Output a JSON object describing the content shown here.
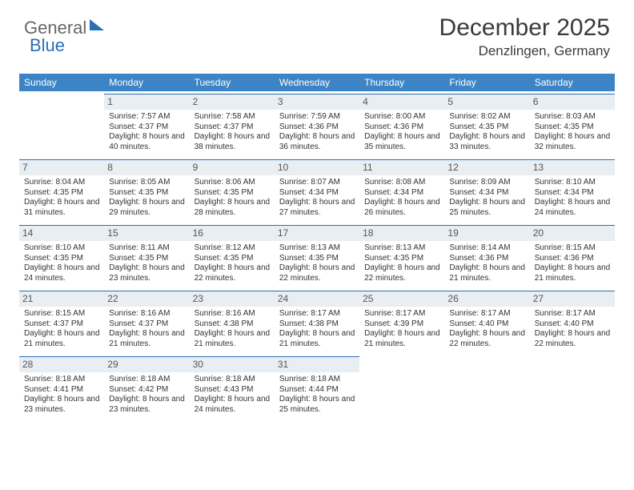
{
  "logo": {
    "part1": "General",
    "part2": "Blue"
  },
  "header": {
    "month_year": "December 2025",
    "location": "Denzlingen, Germany"
  },
  "day_names": [
    "Sunday",
    "Monday",
    "Tuesday",
    "Wednesday",
    "Thursday",
    "Friday",
    "Saturday"
  ],
  "colors": {
    "header_bg": "#3d84c6",
    "header_text": "#ffffff",
    "day_num_bg": "#e9eef2",
    "day_num_border": "#2a6fb5",
    "text": "#333333"
  },
  "start_offset": 1,
  "days": [
    {
      "n": 1,
      "sr": "7:57 AM",
      "ss": "4:37 PM",
      "dl": "8 hours and 40 minutes."
    },
    {
      "n": 2,
      "sr": "7:58 AM",
      "ss": "4:37 PM",
      "dl": "8 hours and 38 minutes."
    },
    {
      "n": 3,
      "sr": "7:59 AM",
      "ss": "4:36 PM",
      "dl": "8 hours and 36 minutes."
    },
    {
      "n": 4,
      "sr": "8:00 AM",
      "ss": "4:36 PM",
      "dl": "8 hours and 35 minutes."
    },
    {
      "n": 5,
      "sr": "8:02 AM",
      "ss": "4:35 PM",
      "dl": "8 hours and 33 minutes."
    },
    {
      "n": 6,
      "sr": "8:03 AM",
      "ss": "4:35 PM",
      "dl": "8 hours and 32 minutes."
    },
    {
      "n": 7,
      "sr": "8:04 AM",
      "ss": "4:35 PM",
      "dl": "8 hours and 31 minutes."
    },
    {
      "n": 8,
      "sr": "8:05 AM",
      "ss": "4:35 PM",
      "dl": "8 hours and 29 minutes."
    },
    {
      "n": 9,
      "sr": "8:06 AM",
      "ss": "4:35 PM",
      "dl": "8 hours and 28 minutes."
    },
    {
      "n": 10,
      "sr": "8:07 AM",
      "ss": "4:34 PM",
      "dl": "8 hours and 27 minutes."
    },
    {
      "n": 11,
      "sr": "8:08 AM",
      "ss": "4:34 PM",
      "dl": "8 hours and 26 minutes."
    },
    {
      "n": 12,
      "sr": "8:09 AM",
      "ss": "4:34 PM",
      "dl": "8 hours and 25 minutes."
    },
    {
      "n": 13,
      "sr": "8:10 AM",
      "ss": "4:34 PM",
      "dl": "8 hours and 24 minutes."
    },
    {
      "n": 14,
      "sr": "8:10 AM",
      "ss": "4:35 PM",
      "dl": "8 hours and 24 minutes."
    },
    {
      "n": 15,
      "sr": "8:11 AM",
      "ss": "4:35 PM",
      "dl": "8 hours and 23 minutes."
    },
    {
      "n": 16,
      "sr": "8:12 AM",
      "ss": "4:35 PM",
      "dl": "8 hours and 22 minutes."
    },
    {
      "n": 17,
      "sr": "8:13 AM",
      "ss": "4:35 PM",
      "dl": "8 hours and 22 minutes."
    },
    {
      "n": 18,
      "sr": "8:13 AM",
      "ss": "4:35 PM",
      "dl": "8 hours and 22 minutes."
    },
    {
      "n": 19,
      "sr": "8:14 AM",
      "ss": "4:36 PM",
      "dl": "8 hours and 21 minutes."
    },
    {
      "n": 20,
      "sr": "8:15 AM",
      "ss": "4:36 PM",
      "dl": "8 hours and 21 minutes."
    },
    {
      "n": 21,
      "sr": "8:15 AM",
      "ss": "4:37 PM",
      "dl": "8 hours and 21 minutes."
    },
    {
      "n": 22,
      "sr": "8:16 AM",
      "ss": "4:37 PM",
      "dl": "8 hours and 21 minutes."
    },
    {
      "n": 23,
      "sr": "8:16 AM",
      "ss": "4:38 PM",
      "dl": "8 hours and 21 minutes."
    },
    {
      "n": 24,
      "sr": "8:17 AM",
      "ss": "4:38 PM",
      "dl": "8 hours and 21 minutes."
    },
    {
      "n": 25,
      "sr": "8:17 AM",
      "ss": "4:39 PM",
      "dl": "8 hours and 21 minutes."
    },
    {
      "n": 26,
      "sr": "8:17 AM",
      "ss": "4:40 PM",
      "dl": "8 hours and 22 minutes."
    },
    {
      "n": 27,
      "sr": "8:17 AM",
      "ss": "4:40 PM",
      "dl": "8 hours and 22 minutes."
    },
    {
      "n": 28,
      "sr": "8:18 AM",
      "ss": "4:41 PM",
      "dl": "8 hours and 23 minutes."
    },
    {
      "n": 29,
      "sr": "8:18 AM",
      "ss": "4:42 PM",
      "dl": "8 hours and 23 minutes."
    },
    {
      "n": 30,
      "sr": "8:18 AM",
      "ss": "4:43 PM",
      "dl": "8 hours and 24 minutes."
    },
    {
      "n": 31,
      "sr": "8:18 AM",
      "ss": "4:44 PM",
      "dl": "8 hours and 25 minutes."
    }
  ],
  "labels": {
    "sunrise": "Sunrise:",
    "sunset": "Sunset:",
    "daylight": "Daylight:"
  }
}
